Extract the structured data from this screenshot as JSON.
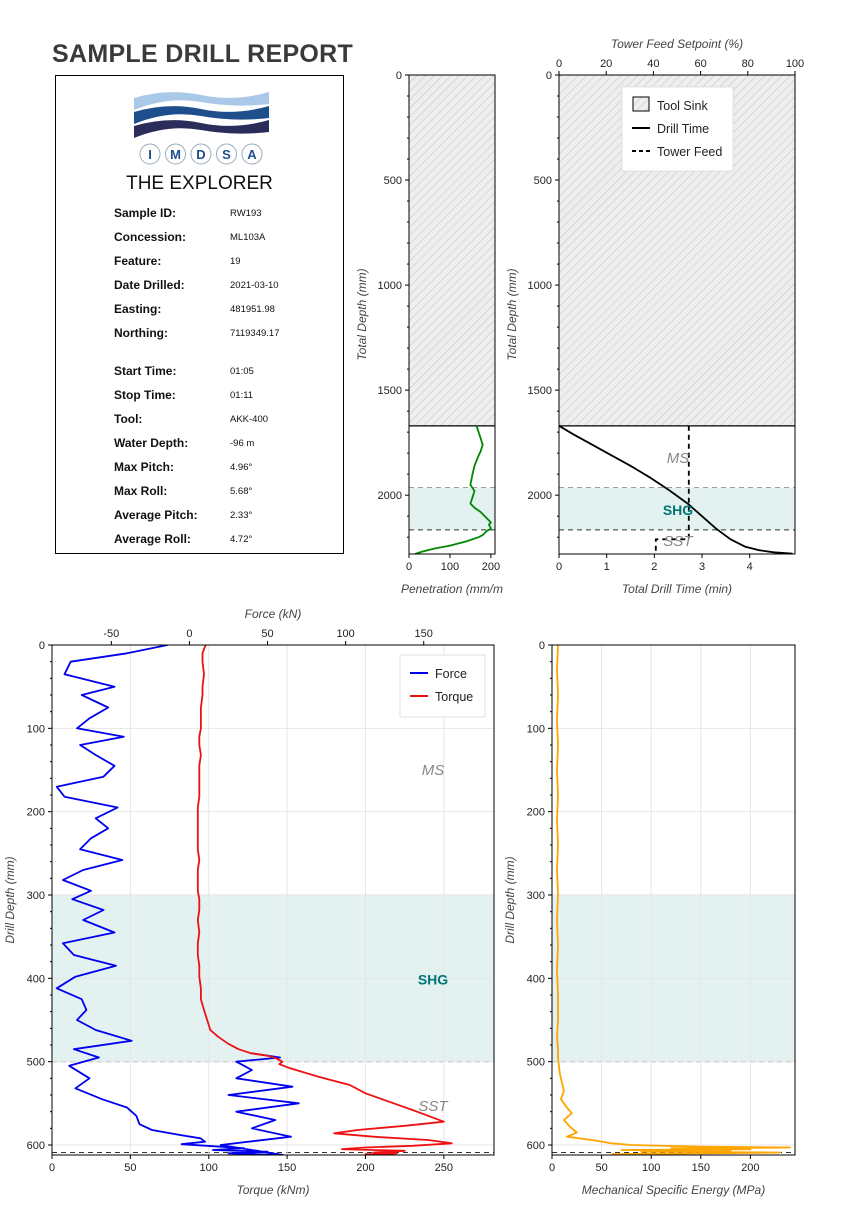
{
  "report": {
    "title": "SAMPLE DRILL REPORT",
    "logo_text": [
      "I",
      "M",
      "D",
      "S",
      "A"
    ],
    "vessel": "THE EXPLORER",
    "fields": [
      {
        "label": "Sample ID:",
        "value": "RW193"
      },
      {
        "label": "Concession:",
        "value": "ML103A"
      },
      {
        "label": "Feature:",
        "value": "19"
      },
      {
        "label": "Date Drilled:",
        "value": "2021-03-10"
      },
      {
        "label": "Easting:",
        "value": "481951.98"
      },
      {
        "label": "Northing:",
        "value": "7119349.17"
      },
      {
        "label": "Start Time:",
        "value": "01:05"
      },
      {
        "label": "Stop Time:",
        "value": "01:11"
      },
      {
        "label": "Tool:",
        "value": "AKK-400"
      },
      {
        "label": "Water Depth:",
        "value": "-96 m"
      },
      {
        "label": "Max Pitch:",
        "value": "4.96°"
      },
      {
        "label": "Max Roll:",
        "value": "5.68°"
      },
      {
        "label": "Average Pitch:",
        "value": "2.33°"
      },
      {
        "label": "Average Roll:",
        "value": "4.72°"
      }
    ]
  },
  "colors": {
    "force": "#0000ee",
    "torque": "#ee1111",
    "penetration": "#008800",
    "mse": "#ffa500",
    "shg_band": "#e3f1f1",
    "shg_text": "#007777",
    "layer_text": "#888888",
    "tool_sink_fill": "#eeeeee"
  },
  "chart_data": [
    {
      "id": "penetration",
      "type": "line",
      "xlabel": "Penetration (mm/m",
      "ylabel": "Total Depth (mm)",
      "xlim": [
        0,
        210
      ],
      "ylim": [
        2280,
        0
      ],
      "xticks": [
        0,
        100,
        200
      ],
      "yticks": [
        0,
        500,
        1000,
        1500,
        2000
      ],
      "tool_sink_depth": 1670,
      "layers": [
        {
          "name": "",
          "top": 0,
          "bottom": 1965
        },
        {
          "name": "",
          "top": 1965,
          "bottom": 2165,
          "shaded": true
        },
        {
          "name": "",
          "top": 2165,
          "bottom": 2280
        }
      ],
      "series": [
        {
          "x": [
            165,
            170,
            175,
            180,
            175,
            168,
            160,
            155,
            150,
            160,
            155,
            150,
            160,
            175,
            180,
            185,
            190,
            195,
            200,
            195,
            198,
            200,
            190,
            185,
            180,
            170,
            140,
            100,
            60,
            30,
            15
          ],
          "y": [
            1670,
            1700,
            1730,
            1760,
            1790,
            1820,
            1860,
            1900,
            1950,
            1980,
            2010,
            2040,
            2060,
            2080,
            2090,
            2100,
            2110,
            2120,
            2130,
            2140,
            2150,
            2160,
            2170,
            2180,
            2190,
            2200,
            2220,
            2240,
            2255,
            2270,
            2280
          ]
        }
      ]
    },
    {
      "id": "drill-time",
      "type": "line",
      "xlabel": "Total Drill Time (min)",
      "ylabel": "Total Depth (mm)",
      "x2label": "Tower Feed Setpoint (%)",
      "xlim": [
        0,
        4.95
      ],
      "x2lim": [
        0,
        100
      ],
      "ylim": [
        2280,
        0
      ],
      "xticks": [
        0,
        1,
        2,
        3,
        4
      ],
      "x2ticks": [
        0,
        20,
        40,
        60,
        80,
        100
      ],
      "yticks": [
        0,
        500,
        1000,
        1500,
        2000
      ],
      "tool_sink_depth": 1670,
      "layers": [
        {
          "name": "MS",
          "top": 1670,
          "bottom": 1965
        },
        {
          "name": "SHG",
          "top": 1965,
          "bottom": 2165,
          "shaded": true
        },
        {
          "name": "SST",
          "top": 2165,
          "bottom": 2280
        }
      ],
      "legend": [
        "Tool Sink",
        "Drill Time",
        "Tower Feed"
      ],
      "series": [
        {
          "name": "Drill Time",
          "x": [
            0,
            0.3,
            0.7,
            1.1,
            1.5,
            1.9,
            2.3,
            2.7,
            3.0,
            3.3,
            3.6,
            3.9,
            4.2,
            4.5,
            4.9
          ],
          "y": [
            1670,
            1710,
            1760,
            1810,
            1860,
            1915,
            1975,
            2040,
            2100,
            2160,
            2210,
            2245,
            2262,
            2272,
            2278
          ]
        },
        {
          "name": "Tower Feed",
          "x2": [
            55,
            55,
            55,
            41,
            41
          ],
          "y": [
            1670,
            2200,
            2210,
            2210,
            2280
          ]
        }
      ]
    },
    {
      "id": "force-torque",
      "type": "line",
      "xlabel": "Torque (kNm)",
      "x2label": "Force (kN)",
      "ylabel": "Drill Depth (mm)",
      "xlim": [
        0,
        282
      ],
      "x2lim": [
        -88,
        195
      ],
      "ylim": [
        612,
        0
      ],
      "xticks": [
        0,
        50,
        100,
        150,
        200,
        250
      ],
      "x2ticks": [
        -50,
        0,
        50,
        100,
        150
      ],
      "yticks": [
        0,
        100,
        200,
        300,
        400,
        500,
        600
      ],
      "layers": [
        {
          "name": "MS",
          "top": 0,
          "bottom": 300
        },
        {
          "name": "SHG",
          "top": 300,
          "bottom": 500,
          "shaded": true
        },
        {
          "name": "SST",
          "top": 500,
          "bottom": 612
        }
      ],
      "extra_hline": 609,
      "legend": [
        "Force",
        "Torque"
      ],
      "series": [
        {
          "name": "Force",
          "axis": "x2",
          "x": [
            -14,
            -40,
            -76,
            -80,
            -48,
            -69,
            -52,
            -64,
            -72,
            -42,
            -70,
            -60,
            -48,
            -55,
            -85,
            -80,
            -46,
            -60,
            -52,
            -63,
            -70,
            -43,
            -68,
            -81,
            -63,
            -75,
            -55,
            -68,
            -48,
            -81,
            -74,
            -47,
            -73,
            -85,
            -69,
            -66,
            -72,
            -60,
            -37,
            -74,
            -58,
            -77,
            -64,
            -73,
            -56,
            -40,
            -34,
            -32,
            -24,
            -6,
            7,
            10,
            -5,
            20,
            35,
            15,
            50,
            25,
            60,
            20,
            65,
            40,
            55,
            30,
            70,
            25,
            66,
            30,
            40,
            35,
            30,
            58,
            40
          ],
          "y": [
            0,
            10,
            20,
            35,
            50,
            60,
            75,
            88,
            100,
            110,
            120,
            132,
            145,
            158,
            170,
            182,
            195,
            208,
            220,
            232,
            245,
            258,
            270,
            282,
            295,
            305,
            318,
            330,
            345,
            358,
            372,
            385,
            398,
            412,
            425,
            438,
            450,
            462,
            475,
            485,
            495,
            505,
            520,
            532,
            545,
            555,
            565,
            575,
            582,
            588,
            592,
            596,
            599,
            602,
            604,
            606,
            608,
            610,
            612,
            600,
            590,
            580,
            570,
            560,
            550,
            540,
            530,
            520,
            510,
            505,
            500,
            495,
            490
          ]
        },
        {
          "name": "Torque",
          "axis": "x",
          "x": [
            98,
            96,
            96,
            97,
            96,
            96,
            95,
            95,
            95,
            94,
            94,
            95,
            94,
            94,
            94,
            94,
            93,
            93,
            93,
            93,
            93,
            94,
            93,
            93,
            93,
            94,
            94,
            93,
            94,
            93,
            93,
            94,
            94,
            95,
            95,
            97,
            99,
            101,
            106,
            112,
            119,
            127,
            138,
            143,
            147,
            145,
            152,
            170,
            190,
            200,
            215,
            230,
            240,
            250,
            225,
            195,
            180,
            205,
            240,
            255,
            230,
            200,
            185,
            205,
            225,
            215,
            205,
            220,
            210,
            200,
            215
          ],
          "y": [
            0,
            10,
            20,
            35,
            50,
            60,
            75,
            88,
            100,
            110,
            120,
            132,
            145,
            158,
            170,
            182,
            195,
            208,
            220,
            232,
            245,
            258,
            270,
            282,
            295,
            305,
            318,
            330,
            345,
            358,
            372,
            385,
            398,
            412,
            425,
            438,
            450,
            462,
            470,
            478,
            485,
            490,
            493,
            496,
            500,
            503,
            508,
            518,
            528,
            538,
            548,
            558,
            565,
            572,
            577,
            582,
            586,
            590,
            594,
            598,
            601,
            603,
            605,
            606,
            607,
            608,
            609,
            610,
            611,
            611,
            612
          ]
        }
      ]
    },
    {
      "id": "mse",
      "type": "line",
      "xlabel": "Mechanical Specific Energy (MPa)",
      "ylabel": "Drill Depth (mm)",
      "xlim": [
        0,
        245
      ],
      "ylim": [
        612,
        0
      ],
      "xticks": [
        0,
        50,
        100,
        150,
        200
      ],
      "yticks": [
        0,
        100,
        200,
        300,
        400,
        500,
        600
      ],
      "layers": [
        {
          "name": "",
          "top": 0,
          "bottom": 300
        },
        {
          "name": "",
          "top": 300,
          "bottom": 500,
          "shaded": true
        },
        {
          "name": "",
          "top": 500,
          "bottom": 612
        }
      ],
      "extra_hline": 609,
      "series": [
        {
          "x": [
            6,
            5,
            6,
            5,
            6,
            5,
            6,
            5,
            6,
            5,
            6,
            5,
            6,
            5,
            6,
            6,
            5,
            6,
            6,
            7,
            8,
            10,
            12,
            9,
            15,
            20,
            12,
            18,
            25,
            15,
            40,
            60,
            80,
            150,
            240,
            120,
            200,
            70,
            180,
            90,
            230,
            60
          ],
          "y": [
            0,
            30,
            60,
            90,
            120,
            150,
            180,
            210,
            240,
            270,
            300,
            330,
            360,
            390,
            420,
            450,
            470,
            485,
            495,
            505,
            515,
            525,
            535,
            545,
            555,
            562,
            570,
            578,
            585,
            590,
            594,
            598,
            600,
            602,
            603,
            604,
            605,
            606,
            607,
            608,
            609,
            611
          ]
        }
      ]
    }
  ]
}
